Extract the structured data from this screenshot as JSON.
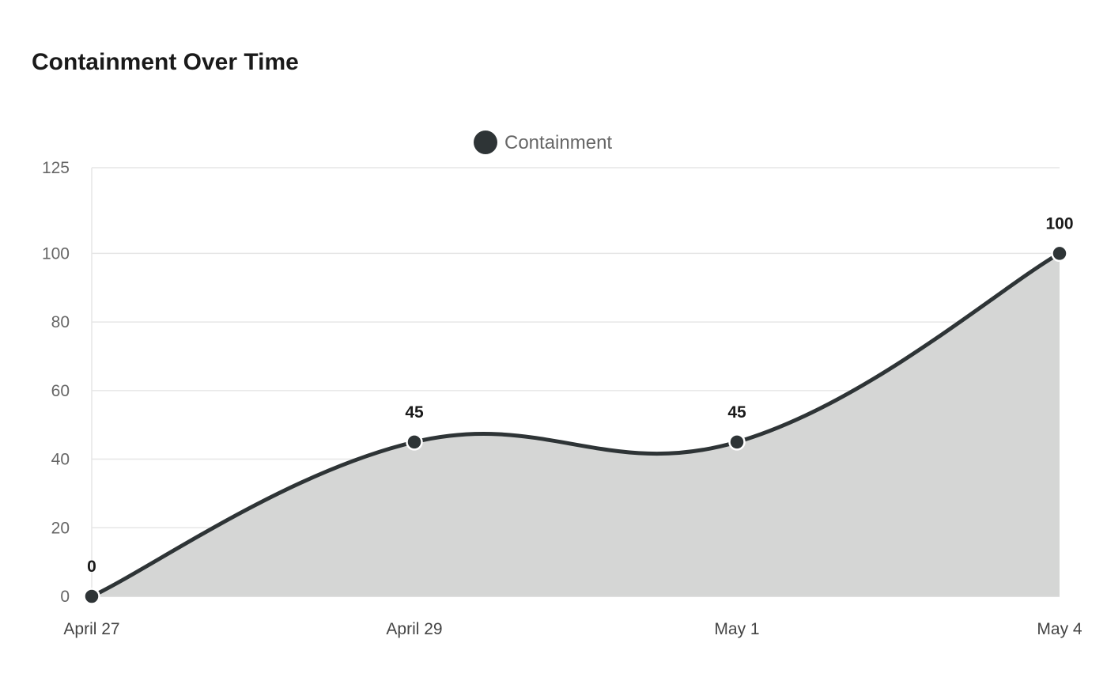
{
  "title": "Containment Over Time",
  "chart_data": {
    "type": "area",
    "title": "Containment Over Time",
    "xlabel": "",
    "ylabel": "",
    "categories": [
      "April 27",
      "April 29",
      "May 1",
      "May 4"
    ],
    "series": [
      {
        "name": "Containment",
        "values": [
          0,
          45,
          45,
          100
        ],
        "line_color": "#2e3436",
        "fill_color": "#d5d6d5"
      }
    ],
    "yticks": [
      0,
      20,
      40,
      60,
      80,
      100,
      125
    ],
    "ylim": [
      0,
      125
    ],
    "grid": true,
    "legend": "top-center",
    "data_labels": true
  }
}
